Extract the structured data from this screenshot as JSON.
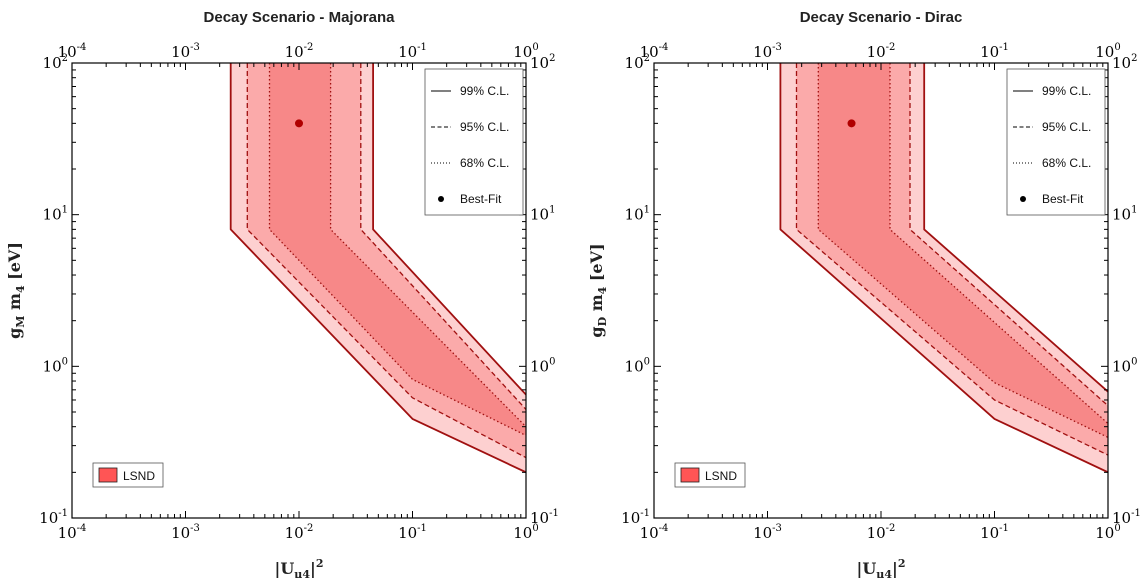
{
  "chart_data": [
    {
      "type": "contour",
      "title": "Decay Scenario - Majorana",
      "xlabel": {
        "prefix": "|U",
        "sub": "μ4",
        "suffix": "|",
        "sup": "2"
      },
      "ylabel": {
        "g": "g",
        "sub": "M",
        "rest": " m",
        "sub2": "4",
        "unit": " [eV]"
      },
      "x_scale": "log",
      "y_scale": "log",
      "xlim": [
        0.0001,
        1
      ],
      "ylim": [
        0.1,
        100
      ],
      "x_ticks": [
        {
          "base": "10",
          "exp": "-4"
        },
        {
          "base": "10",
          "exp": "-3"
        },
        {
          "base": "10",
          "exp": "-2"
        },
        {
          "base": "10",
          "exp": "-1"
        },
        {
          "base": "10",
          "exp": "0"
        }
      ],
      "y_ticks": [
        {
          "base": "10",
          "exp": "-1"
        },
        {
          "base": "10",
          "exp": "0"
        },
        {
          "base": "10",
          "exp": "1"
        },
        {
          "base": "10",
          "exp": "2"
        }
      ],
      "best_fit": {
        "x": 0.01,
        "y": 40
      },
      "bands": [
        {
          "level": "99% C.L.",
          "style": "solid",
          "left": [
            [
              0.0025,
              100
            ],
            [
              0.0025,
              8
            ],
            [
              0.1,
              0.45
            ],
            [
              1,
              0.2
            ]
          ],
          "right": [
            [
              0.045,
              100
            ],
            [
              0.045,
              8
            ],
            [
              1,
              0.65
            ]
          ]
        },
        {
          "level": "95% C.L.",
          "style": "dashed",
          "left": [
            [
              0.0035,
              100
            ],
            [
              0.0035,
              8
            ],
            [
              0.1,
              0.62
            ],
            [
              1,
              0.25
            ]
          ],
          "right": [
            [
              0.035,
              100
            ],
            [
              0.035,
              8
            ],
            [
              1,
              0.52
            ]
          ]
        },
        {
          "level": "68% C.L.",
          "style": "dotted",
          "left": [
            [
              0.0055,
              100
            ],
            [
              0.0055,
              8
            ],
            [
              0.1,
              0.82
            ],
            [
              1,
              0.35
            ]
          ],
          "right": [
            [
              0.019,
              100
            ],
            [
              0.019,
              8
            ],
            [
              1,
              0.4
            ]
          ]
        }
      ]
    },
    {
      "type": "contour",
      "title": "Decay Scenario - Dirac",
      "xlabel": {
        "prefix": "|U",
        "sub": "μ4",
        "suffix": "|",
        "sup": "2"
      },
      "ylabel": {
        "g": "g",
        "sub": "D",
        "rest": " m",
        "sub2": "4",
        "unit": " [eV]"
      },
      "x_scale": "log",
      "y_scale": "log",
      "xlim": [
        0.0001,
        1
      ],
      "ylim": [
        0.1,
        100
      ],
      "x_ticks": [
        {
          "base": "10",
          "exp": "-4"
        },
        {
          "base": "10",
          "exp": "-3"
        },
        {
          "base": "10",
          "exp": "-2"
        },
        {
          "base": "10",
          "exp": "-1"
        },
        {
          "base": "10",
          "exp": "0"
        }
      ],
      "y_ticks": [
        {
          "base": "10",
          "exp": "-1"
        },
        {
          "base": "10",
          "exp": "0"
        },
        {
          "base": "10",
          "exp": "1"
        },
        {
          "base": "10",
          "exp": "2"
        }
      ],
      "best_fit": {
        "x": 0.0055,
        "y": 40
      },
      "bands": [
        {
          "level": "99% C.L.",
          "style": "solid",
          "left": [
            [
              0.0013,
              100
            ],
            [
              0.0013,
              8
            ],
            [
              0.1,
              0.45
            ],
            [
              1,
              0.2
            ]
          ],
          "right": [
            [
              0.024,
              100
            ],
            [
              0.024,
              8
            ],
            [
              1,
              0.68
            ]
          ]
        },
        {
          "level": "95% C.L.",
          "style": "dashed",
          "left": [
            [
              0.0018,
              100
            ],
            [
              0.0018,
              8
            ],
            [
              0.1,
              0.6
            ],
            [
              1,
              0.26
            ]
          ],
          "right": [
            [
              0.018,
              100
            ],
            [
              0.018,
              8
            ],
            [
              1,
              0.55
            ]
          ]
        },
        {
          "level": "68% C.L.",
          "style": "dotted",
          "left": [
            [
              0.0028,
              100
            ],
            [
              0.0028,
              8
            ],
            [
              0.1,
              0.78
            ],
            [
              1,
              0.34
            ]
          ],
          "right": [
            [
              0.012,
              100
            ],
            [
              0.012,
              8
            ],
            [
              1,
              0.42
            ]
          ]
        }
      ]
    }
  ],
  "legend": {
    "items": [
      {
        "label": "99% C.L.",
        "style": "solid"
      },
      {
        "label": "95% C.L.",
        "style": "dashed"
      },
      {
        "label": "68% C.L.",
        "style": "dotted"
      },
      {
        "label": "Best-Fit",
        "style": "dot"
      }
    ],
    "lsnd_label": "LSND"
  },
  "colors": {
    "band_outer": "#fdd0d0",
    "band_mid": "#fbaaaa",
    "band_inner": "#f78888",
    "contour_line": "#a01010",
    "best_fit": "#b00000",
    "lsnd_fill": "#ff5555"
  }
}
